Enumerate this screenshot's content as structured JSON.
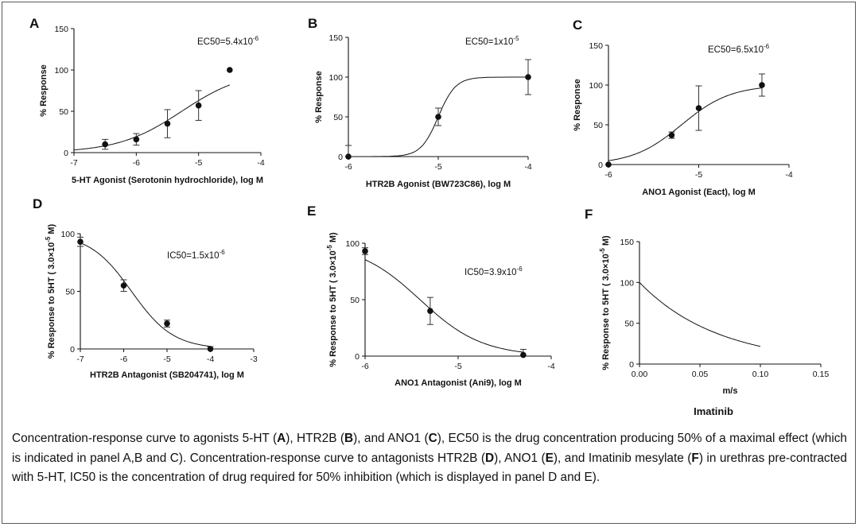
{
  "chart_data": [
    {
      "id": "A",
      "type": "scatter",
      "panel_label": "A",
      "xlabel": "5-HT Agonist (Serotonin hydrochloride), log M",
      "ylabel": "% Response",
      "xlim": [
        -7,
        -4
      ],
      "ylim": [
        0,
        150
      ],
      "xticks": [
        -7,
        -6,
        -5,
        -4
      ],
      "yticks": [
        0,
        50,
        100,
        150
      ],
      "points": [
        {
          "x": -6.5,
          "y": 10,
          "err": 6
        },
        {
          "x": -6.0,
          "y": 16,
          "err": 7
        },
        {
          "x": -5.5,
          "y": 35,
          "err": 17
        },
        {
          "x": -5.0,
          "y": 57,
          "err": 18
        },
        {
          "x": -4.5,
          "y": 100,
          "err": 0
        }
      ],
      "fit": {
        "kind": "sigmoid",
        "bottom": 0,
        "top": 100,
        "logec50": -5.27,
        "hill": 0.85,
        "xmin": -7,
        "xmax": -4.5
      },
      "annotation": "EC50=5.4x10",
      "annotation_exp": "-6"
    },
    {
      "id": "B",
      "type": "scatter",
      "panel_label": "B",
      "xlabel": "HTR2B Agonist (BW723C86), log M",
      "ylabel": "% Response",
      "xlim": [
        -6,
        -4
      ],
      "ylim": [
        0,
        150
      ],
      "xticks": [
        -6,
        -5,
        -4
      ],
      "yticks": [
        0,
        50,
        100,
        150
      ],
      "points": [
        {
          "x": -6.0,
          "y": 0,
          "err": 14
        },
        {
          "x": -5.0,
          "y": 50,
          "err": 11
        },
        {
          "x": -4.0,
          "y": 100,
          "err": 22
        }
      ],
      "fit": {
        "kind": "sigmoid",
        "bottom": 0,
        "top": 100,
        "logec50": -5.0,
        "hill": 4.5,
        "xmin": -6,
        "xmax": -4
      },
      "annotation": "EC50=1x10",
      "annotation_exp": "-5"
    },
    {
      "id": "C",
      "type": "scatter",
      "panel_label": "C",
      "xlabel": "ANO1 Agonist (Eact), log M",
      "ylabel": "% Response",
      "xlim": [
        -6,
        -4
      ],
      "ylim": [
        0,
        150
      ],
      "xticks": [
        -6,
        -5,
        -4
      ],
      "yticks": [
        0,
        50,
        100,
        150
      ],
      "points": [
        {
          "x": -6.0,
          "y": 0,
          "err": 0
        },
        {
          "x": -5.3,
          "y": 37,
          "err": 4
        },
        {
          "x": -5.0,
          "y": 71,
          "err": 28
        },
        {
          "x": -4.3,
          "y": 100,
          "err": 14
        }
      ],
      "fit": {
        "kind": "sigmoid",
        "bottom": 0,
        "top": 100,
        "logec50": -5.19,
        "hill": 1.6,
        "xmin": -6,
        "xmax": -4.3
      },
      "annotation": "EC50=6.5x10",
      "annotation_exp": "-6"
    },
    {
      "id": "D",
      "type": "scatter",
      "panel_label": "D",
      "xlabel": "HTR2B Antagonist (SB204741), log M",
      "ylabel": "% Response to 5HT ( 3.0×10",
      "ylabel_exp": "-5",
      "ylabel_tail": " M)",
      "xlim": [
        -7,
        -3
      ],
      "ylim": [
        0,
        100
      ],
      "xticks": [
        -7,
        -6,
        -5,
        -4,
        -3
      ],
      "yticks": [
        0,
        50,
        100
      ],
      "ytick_labels": [
        "0",
        "50",
        "100"
      ],
      "points": [
        {
          "x": -7.0,
          "y": 93,
          "err": 4
        },
        {
          "x": -6.0,
          "y": 55,
          "err": 5
        },
        {
          "x": -5.0,
          "y": 22,
          "err": 3
        },
        {
          "x": -4.0,
          "y": 0,
          "err": 2
        }
      ],
      "fit": {
        "kind": "sigmoid",
        "bottom": 0,
        "top": 100,
        "logec50": -5.82,
        "hill": -0.9,
        "xmin": -7,
        "xmax": -4
      },
      "annotation": "IC50=1.5x10",
      "annotation_exp": "-6"
    },
    {
      "id": "E",
      "type": "scatter",
      "panel_label": "E",
      "xlabel": "ANO1 Antagonist (Ani9), log M",
      "ylabel": "% Response to 5HT ( 3.0×10",
      "ylabel_exp": "-5",
      "ylabel_tail": " M)",
      "xlim": [
        -6,
        -4
      ],
      "ylim": [
        0,
        100
      ],
      "xticks": [
        -6,
        -5,
        -4
      ],
      "yticks": [
        0,
        50,
        100
      ],
      "points": [
        {
          "x": -6.0,
          "y": 93,
          "err": 3
        },
        {
          "x": -5.3,
          "y": 40,
          "err": 12
        },
        {
          "x": -4.3,
          "y": 1,
          "err": 5
        }
      ],
      "fit": {
        "kind": "sigmoid",
        "bottom": 0,
        "top": 100,
        "logec50": -5.41,
        "hill": -1.3,
        "xmin": -6,
        "xmax": -4.3
      },
      "annotation": "IC50=3.9x10",
      "annotation_exp": "-6"
    },
    {
      "id": "F",
      "type": "line",
      "panel_label": "F",
      "xlabel": "m/s",
      "ylabel": "% Response to 5HT ( 3.0×10",
      "ylabel_exp": "-5",
      "ylabel_tail": " M)",
      "xlim": [
        0,
        0.15
      ],
      "ylim": [
        0,
        150
      ],
      "xticks": [
        0,
        0.05,
        0.1,
        0.15
      ],
      "xtick_labels": [
        "0.00",
        "0.05",
        "0.10",
        "0.15"
      ],
      "yticks": [
        0,
        50,
        100,
        150
      ],
      "points": [],
      "fit": {
        "kind": "decay",
        "y0": 100,
        "plateau": 0,
        "k": 15.3,
        "xmin": 0,
        "xmax": 0.1
      },
      "extra_label": "Imatinib"
    }
  ],
  "caption": {
    "segments": [
      {
        "t": "Concentration-response curve to agonists 5-HT (",
        "b": false
      },
      {
        "t": "A",
        "b": true
      },
      {
        "t": "), HTR2B (",
        "b": false
      },
      {
        "t": "B",
        "b": true
      },
      {
        "t": "), and ANO1 (",
        "b": false
      },
      {
        "t": "C",
        "b": true
      },
      {
        "t": "), EC50 is the drug concentration producing 50% of a maximal effect (which is indicated in panel A,B and C). Concentration-response curve to antagonists HTR2B (",
        "b": false
      },
      {
        "t": "D",
        "b": true
      },
      {
        "t": "), ANO1 (",
        "b": false
      },
      {
        "t": "E",
        "b": true
      },
      {
        "t": "), and Imatinib mesylate (",
        "b": false
      },
      {
        "t": "F",
        "b": true
      },
      {
        "t": ") in urethras pre-contracted with 5-HT, IC50 is the concentration of drug required for 50% inhibition (which is displayed in panel D and E).",
        "b": false
      }
    ]
  }
}
